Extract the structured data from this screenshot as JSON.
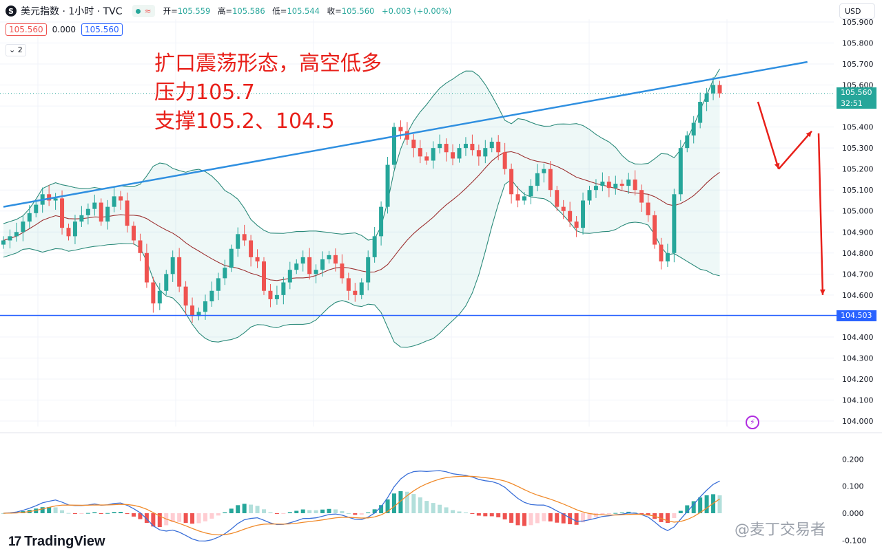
{
  "header": {
    "logo_letter": "S",
    "symbol_title": "美元指数 · 1小时 · TVC",
    "status_icon": "market-open-dot-icon",
    "wave_icon": "≈",
    "ohlc": {
      "open_label": "开=",
      "open": "105.559",
      "high_label": "高=",
      "high": "105.586",
      "low_label": "低=",
      "low": "105.544",
      "close_label": "收=",
      "close": "105.560",
      "change": "+0.003 (+0.00%)"
    }
  },
  "quote_row": {
    "bid": "105.560",
    "spread": "0.000",
    "ask": "105.560"
  },
  "indicator_toggle": {
    "icon": "chevron-down-icon",
    "count": "2"
  },
  "currency": "USD",
  "annotation": {
    "line1": "扩口震荡形态，高空低多",
    "line2": "压力105.7",
    "line3": "支撑105.2、104.5"
  },
  "price_label": {
    "price": "105.560",
    "countdown": "32:51"
  },
  "support_label": "104.503",
  "branding": {
    "logo_text": "TradingView",
    "watermark": "@麦丁交易者"
  },
  "colors": {
    "up": "#26a69a",
    "down": "#ef5350",
    "trend": "#2f8fe0",
    "support": "#2962ff",
    "arrows": "#e8201a",
    "macd": "#3a6fd8",
    "signal": "#f08a2a"
  },
  "chart_data": {
    "type": "candlestick",
    "instrument": "美元指数",
    "timeframe": "1小时",
    "source": "TVC",
    "price_axis": {
      "ticks": [
        "105.900",
        "105.800",
        "105.700",
        "105.600",
        "105.500",
        "105.400",
        "105.300",
        "105.200",
        "105.100",
        "105.000",
        "104.900",
        "104.800",
        "104.700",
        "104.600",
        "104.500",
        "104.400",
        "104.300",
        "104.200",
        "104.100",
        "104.000"
      ],
      "range": [
        104.0,
        105.95
      ]
    },
    "indicator_axis": {
      "ticks": [
        "0.200",
        "0.100",
        "0.000",
        "-0.100"
      ],
      "range": [
        -0.12,
        0.24
      ]
    },
    "close_series": [
      104.86,
      104.88,
      104.9,
      104.95,
      104.99,
      105.03,
      105.08,
      105.05,
      105.06,
      104.92,
      104.88,
      104.95,
      104.98,
      105.01,
      105.04,
      104.95,
      105.02,
      105.07,
      105.05,
      104.93,
      104.86,
      104.8,
      104.66,
      104.56,
      104.62,
      104.7,
      104.78,
      104.64,
      104.55,
      104.5,
      104.52,
      104.57,
      104.62,
      104.68,
      104.73,
      104.82,
      104.89,
      104.86,
      104.78,
      104.76,
      104.62,
      104.58,
      104.6,
      104.66,
      104.72,
      104.75,
      104.78,
      104.7,
      104.72,
      104.77,
      104.79,
      104.75,
      104.68,
      104.62,
      104.6,
      104.66,
      104.78,
      104.88,
      105.02,
      105.22,
      105.4,
      105.38,
      105.34,
      105.3,
      105.26,
      105.24,
      105.3,
      105.32,
      105.28,
      105.25,
      105.3,
      105.32,
      105.29,
      105.26,
      105.3,
      105.33,
      105.28,
      105.2,
      105.08,
      105.05,
      105.07,
      105.12,
      105.18,
      105.2,
      105.1,
      105.02,
      105.0,
      104.95,
      104.92,
      105.05,
      105.1,
      105.12,
      105.14,
      105.11,
      105.13,
      105.12,
      105.15,
      105.1,
      105.04,
      104.98,
      104.84,
      104.76,
      104.8,
      105.08,
      105.3,
      105.36,
      105.42,
      105.52,
      105.56,
      105.6,
      105.56
    ],
    "bollinger": {
      "period": 20,
      "std": 2
    },
    "trendline": {
      "from": {
        "bar": 0,
        "price": 105.02
      },
      "to": {
        "bar": 115,
        "price": 105.71
      }
    },
    "support_line": 104.503,
    "projection_arrows": [
      {
        "from": 105.52,
        "to": 105.2
      },
      {
        "from": 105.2,
        "to": 105.38
      },
      {
        "from": 105.37,
        "to": 104.6
      }
    ]
  }
}
